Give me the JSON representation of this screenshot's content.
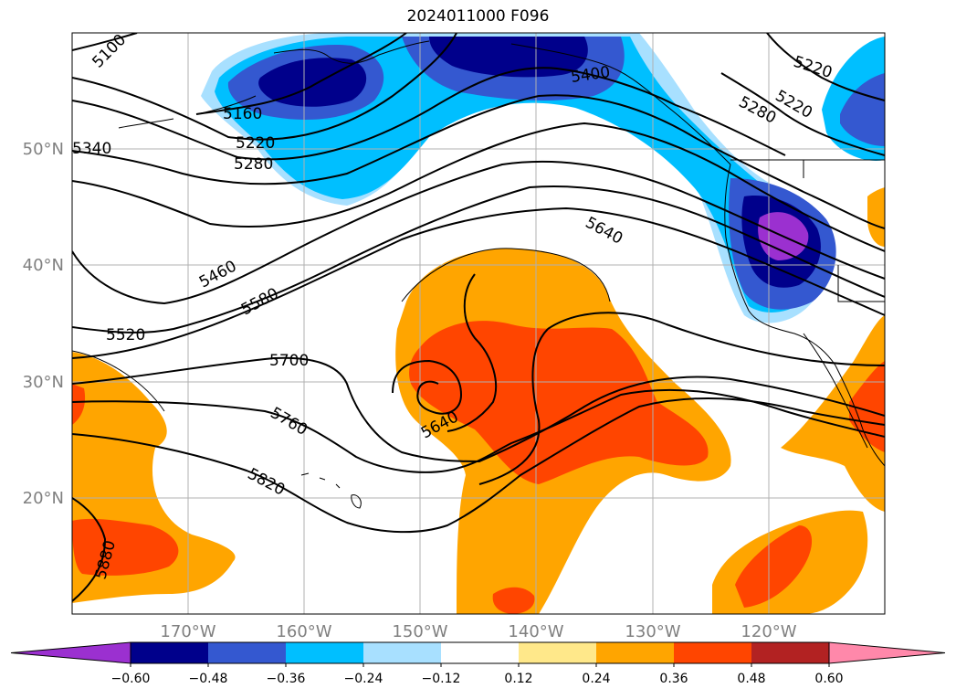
{
  "title": "2024011000 F096",
  "axes": {
    "lon_ticks": [
      "170°W",
      "160°W",
      "150°W",
      "140°W",
      "130°W",
      "120°W"
    ],
    "lat_ticks": [
      "50°N",
      "40°N",
      "30°N",
      "20°N"
    ]
  },
  "contours": {
    "labels": [
      "5100",
      "5160",
      "5220",
      "5280",
      "5340",
      "5400",
      "5220",
      "5220",
      "5280",
      "5460",
      "5520",
      "5580",
      "5640",
      "5700",
      "5760",
      "5820",
      "5640",
      "5880"
    ]
  },
  "colorbar": {
    "ticks": [
      "−0.60",
      "−0.48",
      "−0.36",
      "−0.24",
      "−0.12",
      "0.12",
      "0.24",
      "0.36",
      "0.48",
      "0.60"
    ],
    "colors": [
      "#9b30d0",
      "#00008b",
      "#3458d0",
      "#00bfff",
      "#a8e0ff",
      "#ffffff",
      "#ffe88a",
      "#ffa500",
      "#ff4500",
      "#b22222",
      "#ff88aa"
    ]
  },
  "colors": {
    "line": "#000000",
    "grid": "#b0b0b0",
    "tick_text": "#808080"
  }
}
